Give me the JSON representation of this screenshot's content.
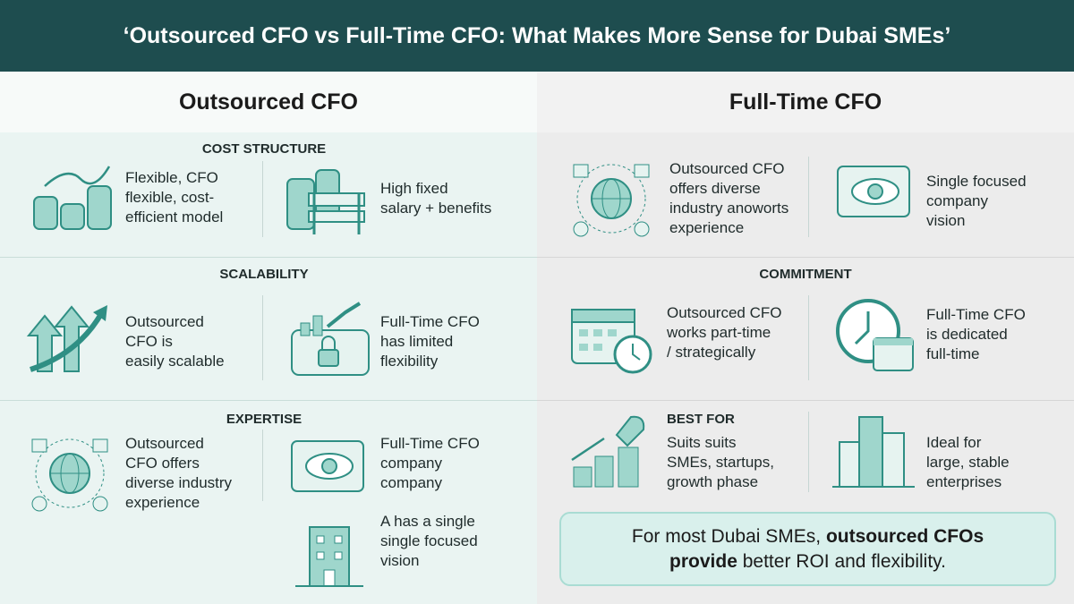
{
  "header": {
    "title": "‘Outsourced CFO vs Full-Time CFO: What Makes More Sense for Dubai SMEs’"
  },
  "left": {
    "heading": "Outsourced CFO",
    "sections": [
      {
        "label": "COST STRUCTURE",
        "items": [
          [
            "Flexible, CFO",
            "flexible, cost-",
            "efficient model"
          ],
          [
            "High fixed",
            "salary + benefits"
          ]
        ]
      },
      {
        "label": "SCALABILITY",
        "items": [
          [
            "Outsourced",
            "CFO is",
            "easily scalable"
          ],
          [
            "Full-Time CFO",
            "has limited",
            "flexibility"
          ]
        ]
      },
      {
        "label": "EXPERTISE",
        "items": [
          [
            "Outsourced",
            "CFO offers",
            "diverse industry",
            "experience"
          ],
          [
            "Full-Time CFO",
            "company",
            "company"
          ],
          [
            "A has a single",
            "single focused",
            "vision"
          ]
        ]
      }
    ]
  },
  "right": {
    "heading": "Full-Time CFO",
    "sections": [
      {
        "items": [
          [
            "Outsourced CFO",
            "offers diverse",
            "industry anoworts",
            "experience"
          ],
          [
            "Single focused",
            "company",
            "vision"
          ]
        ]
      },
      {
        "label": "COMMITMENT",
        "items": [
          [
            "Outsourced CFO",
            "works part-time",
            "/ strategically"
          ],
          [
            "Full-Time CFO",
            "is dedicated",
            "full-time"
          ]
        ]
      },
      {
        "label": "BEST FOR",
        "items": [
          [
            "Suits suits",
            "SMEs, startups,",
            "growth phase"
          ],
          [
            "Ideal for",
            "large, stable",
            "enterprises"
          ]
        ]
      }
    ]
  },
  "callout": {
    "lines": [
      [
        "For most Dubai SMEs, ",
        "outsourced CFOs"
      ],
      [
        "provide",
        " better ROI and flexibility."
      ]
    ]
  }
}
